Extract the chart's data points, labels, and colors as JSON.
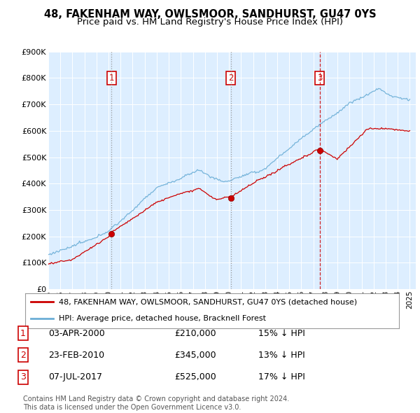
{
  "title": "48, FAKENHAM WAY, OWLSMOOR, SANDHURST, GU47 0YS",
  "subtitle": "Price paid vs. HM Land Registry's House Price Index (HPI)",
  "ylim": [
    0,
    900000
  ],
  "yticks": [
    0,
    100000,
    200000,
    300000,
    400000,
    500000,
    600000,
    700000,
    800000,
    900000
  ],
  "ytick_labels": [
    "£0",
    "£100K",
    "£200K",
    "£300K",
    "£400K",
    "£500K",
    "£600K",
    "£700K",
    "£800K",
    "£900K"
  ],
  "hpi_color": "#6baed6",
  "price_color": "#cc0000",
  "bg_color": "#ddeeff",
  "purchases": [
    {
      "date": 2000.25,
      "price": 210000,
      "label": "1",
      "vline_style": "dotted",
      "vline_color": "#888888"
    },
    {
      "date": 2010.14,
      "price": 345000,
      "label": "2",
      "vline_style": "dotted",
      "vline_color": "#888888"
    },
    {
      "date": 2017.52,
      "price": 525000,
      "label": "3",
      "vline_style": "dashed",
      "vline_color": "#cc0000"
    }
  ],
  "legend_red_label": "48, FAKENHAM WAY, OWLSMOOR, SANDHURST, GU47 0YS (detached house)",
  "legend_blue_label": "HPI: Average price, detached house, Bracknell Forest",
  "table_rows": [
    {
      "num": "1",
      "date": "03-APR-2000",
      "price": "£210,000",
      "hpi": "15% ↓ HPI"
    },
    {
      "num": "2",
      "date": "23-FEB-2010",
      "price": "£345,000",
      "hpi": "13% ↓ HPI"
    },
    {
      "num": "3",
      "date": "07-JUL-2017",
      "price": "£525,000",
      "hpi": "17% ↓ HPI"
    }
  ],
  "footer": "Contains HM Land Registry data © Crown copyright and database right 2024.\nThis data is licensed under the Open Government Licence v3.0.",
  "title_fontsize": 10.5,
  "subtitle_fontsize": 9.5,
  "tick_fontsize": 8,
  "legend_fontsize": 8,
  "table_fontsize": 9,
  "footer_fontsize": 7
}
